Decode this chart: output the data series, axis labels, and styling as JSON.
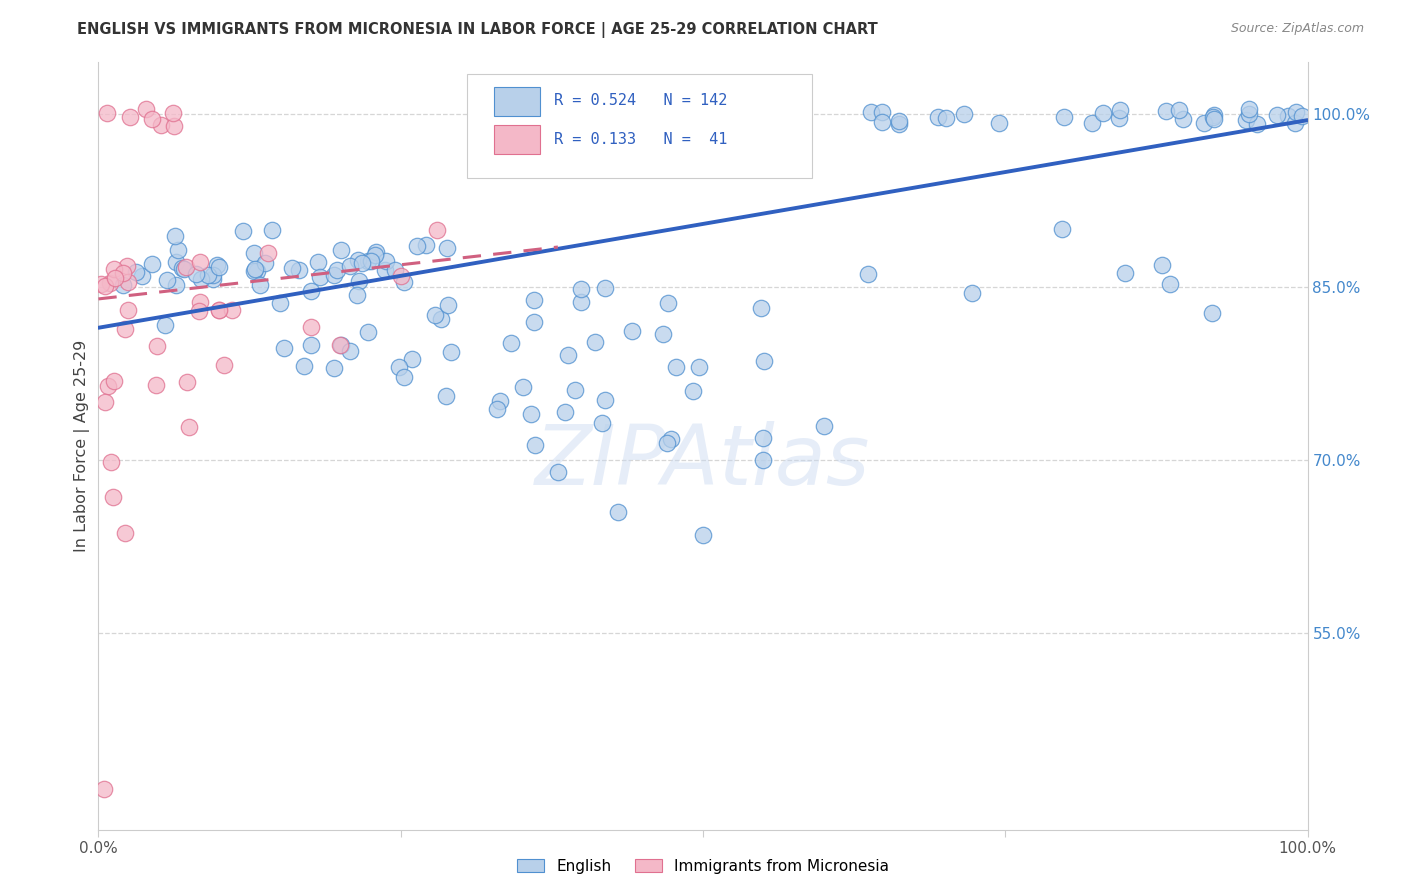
{
  "title": "ENGLISH VS IMMIGRANTS FROM MICRONESIA IN LABOR FORCE | AGE 25-29 CORRELATION CHART",
  "source": "Source: ZipAtlas.com",
  "ylabel": "In Labor Force | Age 25-29",
  "ylabel_right_ticks": [
    55.0,
    70.0,
    85.0,
    100.0
  ],
  "xmin": 0.0,
  "xmax": 1.0,
  "ymin": 0.38,
  "ymax": 1.045,
  "blue_R": 0.524,
  "blue_N": 142,
  "pink_R": 0.133,
  "pink_N": 41,
  "blue_color": "#b8d0ea",
  "pink_color": "#f4b8c8",
  "blue_edge_color": "#5090d0",
  "pink_edge_color": "#e07090",
  "blue_line_color": "#3060c0",
  "pink_line_color": "#d06080",
  "legend_label_blue": "English",
  "legend_label_pink": "Immigrants from Micronesia",
  "watermark": "ZIPAtlas",
  "grid_color": "#cccccc",
  "spine_color": "#cccccc",
  "right_tick_color": "#4488cc",
  "title_color": "#333333",
  "source_color": "#888888"
}
